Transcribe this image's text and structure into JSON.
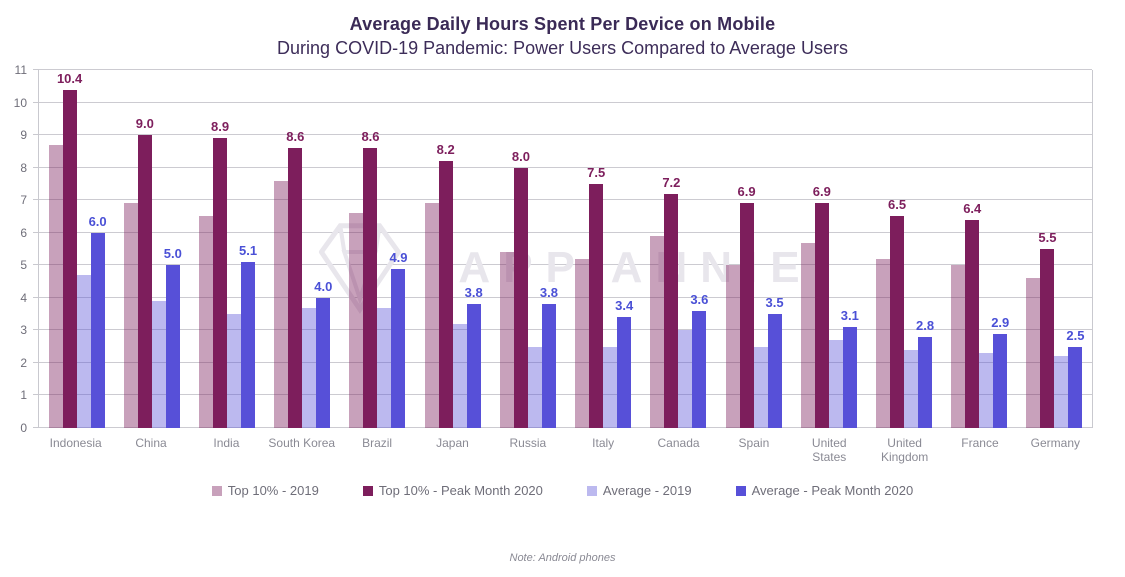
{
  "header": {
    "title": "Average Daily Hours Spent Per Device on Mobile",
    "subtitle": "During COVID-19 Pandemic: Power Users Compared to Average Users"
  },
  "note": "Note: Android phones",
  "watermark": {
    "text": "APP ANNIE",
    "logo": "diamond-gem-logo",
    "color": "#E8E6EC"
  },
  "colors": {
    "title_text": "#3A2A56",
    "axis_text": "#6F6E79",
    "category_text": "#8A8A94",
    "gridline": "#CCCBD1",
    "top10_series": "#7D1E5C",
    "average_series": "#5750D8",
    "average_label": "#4A50D6"
  },
  "chart_data": {
    "type": "bar",
    "title": "Average Daily Hours Spent Per Device on Mobile",
    "subtitle": "During COVID-19 Pandemic: Power Users Compared to Average Users",
    "xlabel": "",
    "ylabel": "",
    "ylim": [
      0,
      11
    ],
    "yticks": [
      0,
      1,
      2,
      3,
      4,
      5,
      6,
      7,
      8,
      9,
      10,
      11
    ],
    "grid": true,
    "legend_position": "bottom",
    "categories": [
      "Indonesia",
      "China",
      "India",
      "South Korea",
      "Brazil",
      "Japan",
      "Russia",
      "Italy",
      "Canada",
      "Spain",
      "United States",
      "United Kingdom",
      "France",
      "Germany"
    ],
    "series": [
      {
        "name": "Top 10% - 2019",
        "color": "#7D1E5C",
        "opacity": 0.42,
        "show_labels": false,
        "values": [
          8.7,
          6.9,
          6.5,
          7.6,
          6.6,
          6.9,
          5.4,
          5.2,
          5.9,
          5.0,
          5.7,
          5.2,
          5.0,
          4.6
        ]
      },
      {
        "name": "Top 10% - Peak Month 2020",
        "color": "#7D1E5C",
        "opacity": 1,
        "show_labels": true,
        "label_color": "#7D1E5C",
        "values": [
          10.4,
          9.0,
          8.9,
          8.6,
          8.6,
          8.2,
          8.0,
          7.5,
          7.2,
          6.9,
          6.9,
          6.5,
          6.4,
          5.5
        ]
      },
      {
        "name": "Average - 2019",
        "color": "#5750D8",
        "opacity": 0.4,
        "show_labels": false,
        "values": [
          4.7,
          3.9,
          3.5,
          3.7,
          3.7,
          3.2,
          2.5,
          2.5,
          3.0,
          2.5,
          2.7,
          2.4,
          2.3,
          2.2
        ]
      },
      {
        "name": "Average - Peak Month 2020",
        "color": "#5750D8",
        "opacity": 1,
        "show_labels": true,
        "label_color": "#4A50D6",
        "values": [
          6.0,
          5.0,
          5.1,
          4.0,
          4.9,
          3.8,
          3.8,
          3.4,
          3.6,
          3.5,
          3.1,
          2.8,
          2.9,
          2.5
        ]
      }
    ]
  }
}
